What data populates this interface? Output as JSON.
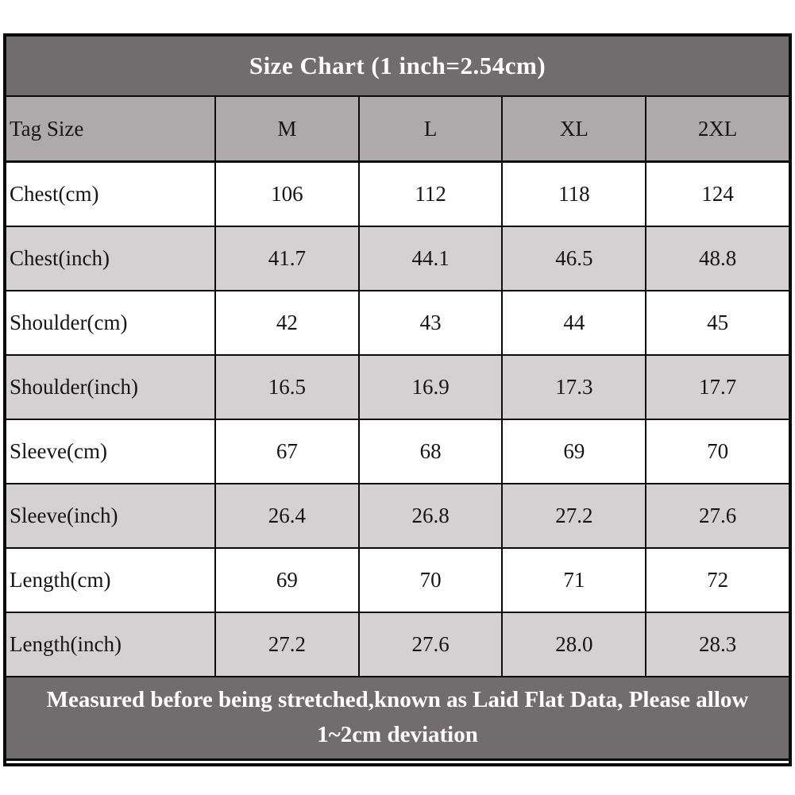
{
  "title": "Size Chart (1 inch=2.54cm)",
  "footer_note": "Measured before being stretched,known as Laid Flat Data, Please allow 1~2cm deviation",
  "table": {
    "header": [
      "Tag Size",
      "M",
      "L",
      "XL",
      "2XL"
    ],
    "rows": [
      {
        "label": "Chest(cm)",
        "values": [
          "106",
          "112",
          "118",
          "124"
        ]
      },
      {
        "label": "Chest(inch)",
        "values": [
          "41.7",
          "44.1",
          "46.5",
          "48.8"
        ]
      },
      {
        "label": "Shoulder(cm)",
        "values": [
          "42",
          "43",
          "44",
          "45"
        ]
      },
      {
        "label": "Shoulder(inch)",
        "values": [
          "16.5",
          "16.9",
          "17.3",
          "17.7"
        ]
      },
      {
        "label": "Sleeve(cm)",
        "values": [
          "67",
          "68",
          "69",
          "70"
        ]
      },
      {
        "label": "Sleeve(inch)",
        "values": [
          "26.4",
          "26.8",
          "27.2",
          "27.6"
        ]
      },
      {
        "label": "Length(cm)",
        "values": [
          "69",
          "70",
          "71",
          "72"
        ]
      },
      {
        "label": "Length(inch)",
        "values": [
          "27.2",
          "27.6",
          "28.0",
          "28.3"
        ]
      }
    ]
  },
  "chart_data": {
    "type": "table",
    "title": "Size Chart (1 inch=2.54cm)",
    "columns": [
      "Tag Size",
      "M",
      "L",
      "XL",
      "2XL"
    ],
    "rows": [
      [
        "Chest(cm)",
        106,
        112,
        118,
        124
      ],
      [
        "Chest(inch)",
        41.7,
        44.1,
        46.5,
        48.8
      ],
      [
        "Shoulder(cm)",
        42,
        43,
        44,
        45
      ],
      [
        "Shoulder(inch)",
        16.5,
        16.9,
        17.3,
        17.7
      ],
      [
        "Sleeve(cm)",
        67,
        68,
        69,
        70
      ],
      [
        "Sleeve(inch)",
        26.4,
        26.8,
        27.2,
        27.6
      ],
      [
        "Length(cm)",
        69,
        70,
        71,
        72
      ],
      [
        "Length(inch)",
        27.2,
        27.6,
        28.0,
        28.3
      ]
    ],
    "footnote": "Measured before being stretched,known as Laid Flat Data, Please allow 1~2cm deviation"
  },
  "colors": {
    "band_dark": "#716d6e",
    "header_gray": "#aeaaab",
    "row_gray": "#d3d1d2",
    "row_white": "#ffffff",
    "border": "#0a0a0a"
  }
}
